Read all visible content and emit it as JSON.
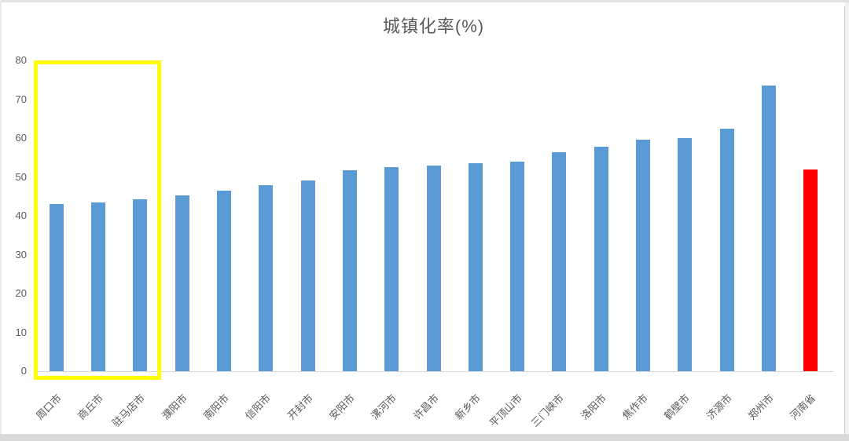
{
  "chart_data": {
    "type": "bar",
    "title": "城镇化率(%)",
    "categories": [
      "周口市",
      "商丘市",
      "驻马店市",
      "濮阳市",
      "南阳市",
      "信阳市",
      "开封市",
      "安阳市",
      "漯河市",
      "许昌市",
      "新乡市",
      "平顶山市",
      "三门峡市",
      "洛阳市",
      "焦作市",
      "鹤壁市",
      "济源市",
      "郑州市",
      "河南省"
    ],
    "values": [
      43.0,
      43.4,
      44.2,
      45.3,
      46.4,
      47.8,
      49.0,
      51.8,
      52.5,
      52.9,
      53.5,
      54.0,
      56.4,
      57.7,
      59.5,
      60.0,
      62.4,
      73.5,
      51.9
    ],
    "xlabel": "",
    "ylabel": "",
    "ylim": [
      0,
      80
    ],
    "yticks": [
      0,
      10,
      20,
      30,
      40,
      50,
      60,
      70,
      80
    ],
    "grid": false,
    "legend_position": "none",
    "bar_color_default": "#5B9BD5",
    "bar_color_highlight": "#FF0000",
    "highlighted_category": "河南省",
    "annotation_box": {
      "covers_categories": [
        "周口市",
        "商丘市",
        "驻马店市"
      ],
      "border_color": "#FFFF00"
    },
    "text_color": "#595959",
    "axis_line_color": "#D9D9D9"
  }
}
